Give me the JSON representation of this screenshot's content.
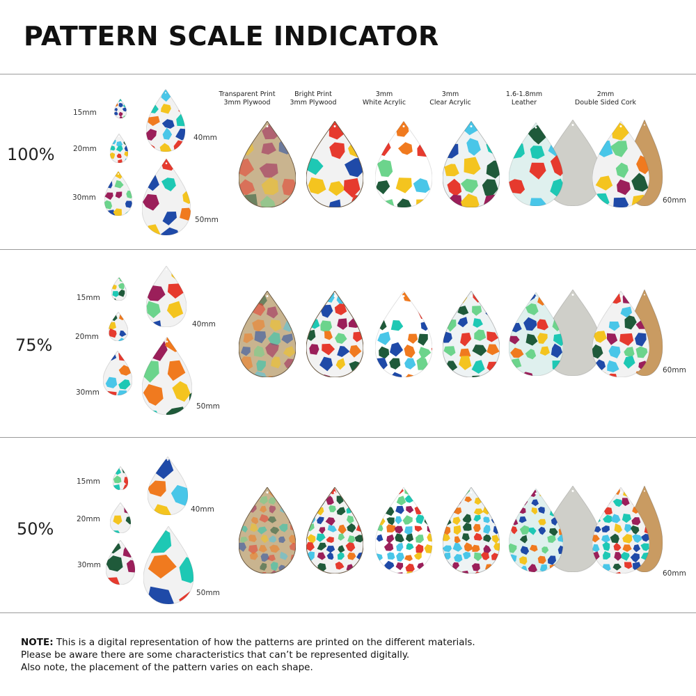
{
  "title": "PATTERN SCALE INDICATOR",
  "materials": [
    {
      "line1": "Transparent Print",
      "line2": "3mm Plywood"
    },
    {
      "line1": "Bright Print",
      "line2": "3mm Plywood"
    },
    {
      "line1": "3mm",
      "line2": "White Acrylic"
    },
    {
      "line1": "3mm",
      "line2": "Clear Acrylic"
    },
    {
      "line1": "1.6-1.8mm",
      "line2": "Leather"
    },
    {
      "line1": "2mm",
      "line2": "Double Sided Cork"
    }
  ],
  "rows": [
    {
      "scale": "100%",
      "sizes": [
        "15mm",
        "20mm",
        "30mm",
        "40mm",
        "50mm"
      ],
      "big_size": "60mm"
    },
    {
      "scale": "75%",
      "sizes": [
        "15mm",
        "20mm",
        "30mm",
        "40mm",
        "50mm"
      ],
      "big_size": "60mm"
    },
    {
      "scale": "50%",
      "sizes": [
        "15mm",
        "20mm",
        "30mm",
        "40mm",
        "50mm"
      ],
      "big_size": "60mm"
    }
  ],
  "note": {
    "bold": "NOTE:",
    "line1": " This is a digital representation of how the patterns are printed on the different materials.",
    "line2": "Please be aware there are some characteristics that can’t be represented digitally.",
    "line3": "Also note, the placement of the pattern varies on each shape."
  },
  "colors": {
    "palette": [
      "#1ec8b4",
      "#e63a2e",
      "#f4c41f",
      "#1f4aa8",
      "#9b1f5a",
      "#1f5a3a",
      "#f07a1f",
      "#49c6e8",
      "#6cd48c",
      "#e6e6e6"
    ]
  }
}
